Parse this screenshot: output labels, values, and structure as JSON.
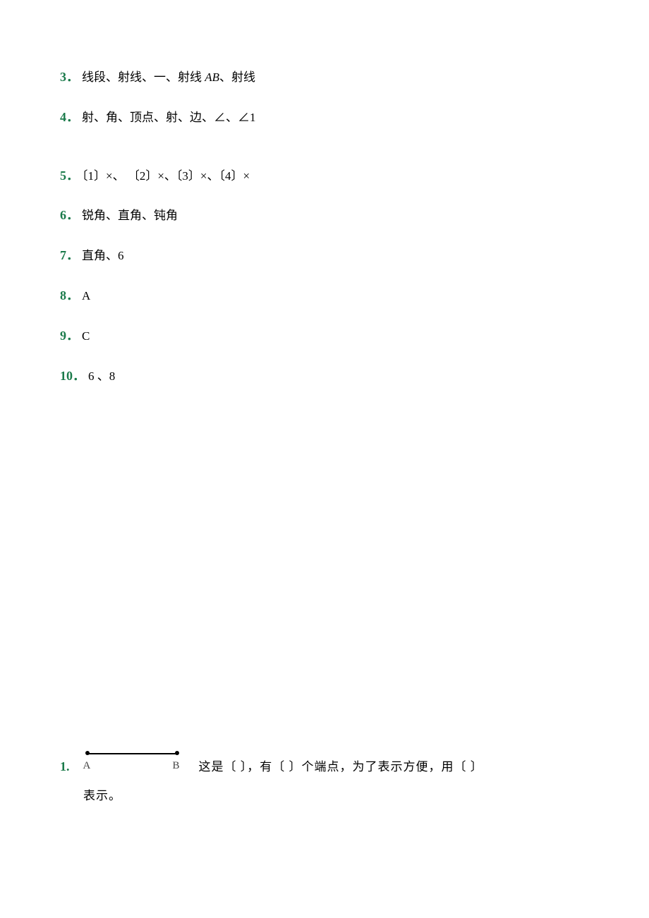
{
  "colors": {
    "background": "#ffffff",
    "text": "#000000",
    "number": "#1a7a4a",
    "center_mark": "#888888",
    "diagram_label": "#444444"
  },
  "typography": {
    "body_fontsize": 17,
    "number_fontsize": 18,
    "center_mark_fontsize": 12,
    "diagram_label_fontsize": 15,
    "line_gap": 28,
    "extra_gap": 54
  },
  "answers": [
    {
      "num": "3．",
      "text": "线段、射线、一、射线 ",
      "italic": "AB",
      "text_after": "、射线",
      "extra_gap": false
    },
    {
      "num": "4．",
      "text": "射、角、顶点、射、边、∠、∠1",
      "extra_gap": false
    },
    {
      "num": "5．",
      "text": "〔1〕×、 〔2〕×、〔3〕×、〔4〕×",
      "extra_gap": true
    },
    {
      "num": "6．",
      "text": "锐角、直角、钝角",
      "extra_gap": false
    },
    {
      "num": "7．",
      "text": "直角、6",
      "extra_gap": false
    },
    {
      "num": "8．",
      "text": "A",
      "extra_gap": false
    },
    {
      "num": "9．",
      "text": "C",
      "extra_gap": false
    },
    {
      "num": "10．",
      "text": "6 、8",
      "extra_gap": false
    }
  ],
  "center_mark": "",
  "question": {
    "num": "1.",
    "diagram": {
      "label_a": "A",
      "label_b": "B",
      "line_width": 128,
      "dot_radius": 3
    },
    "text_line1": "这是〔      〕，有〔      〕个端点，为了表示方便，用〔      〕",
    "text_line2": "表示。"
  }
}
